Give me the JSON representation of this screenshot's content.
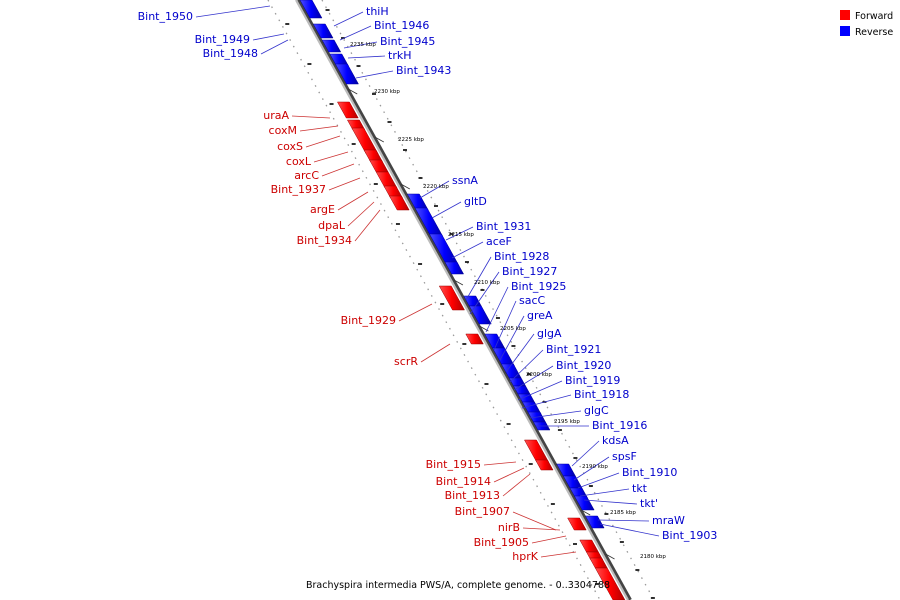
{
  "caption": "Brachyspira intermedia PWS/A, complete genome. - 0..3304788",
  "legend": [
    {
      "label": "Forward",
      "color": "#ff0000"
    },
    {
      "label": "Reverse",
      "color": "#0000ff"
    }
  ],
  "colors": {
    "forward": "#ff0000",
    "reverse": "#0000ff",
    "forward_label": "#cc0000",
    "reverse_label": "#0000cc",
    "backbone": "#888888"
  },
  "ticks": [
    "2235 kbp",
    "2230 kbp",
    "2225 kbp",
    "2220 kbp",
    "2215 kbp",
    "2210 kbp",
    "2205 kbp",
    "2200 kbp",
    "2195 kbp",
    "2190 kbp",
    "2185 kbp",
    "2180 kbp"
  ],
  "reverse_labels": [
    "Bint_1950",
    "Bint_1949",
    "Bint_1948",
    "thiH",
    "Bint_1946",
    "Bint_1945",
    "trkH",
    "Bint_1943",
    "ssnA",
    "gltD",
    "Bint_1931",
    "aceF",
    "Bint_1928",
    "Bint_1927",
    "Bint_1925",
    "sacC",
    "greA",
    "glgA",
    "Bint_1921",
    "Bint_1920",
    "Bint_1919",
    "Bint_1918",
    "glgC",
    "Bint_1916",
    "kdsA",
    "spsF",
    "Bint_1910",
    "tkt",
    "tkt'",
    "mraW",
    "Bint_1903"
  ],
  "forward_labels": [
    "uraA",
    "coxM",
    "coxS",
    "coxL",
    "arcC",
    "Bint_1937",
    "argE",
    "dpaL",
    "Bint_1934",
    "Bint_1929",
    "scrR",
    "Bint_1915",
    "Bint_1914",
    "Bint_1913",
    "Bint_1907",
    "nirB",
    "Bint_1905",
    "hprK"
  ]
}
